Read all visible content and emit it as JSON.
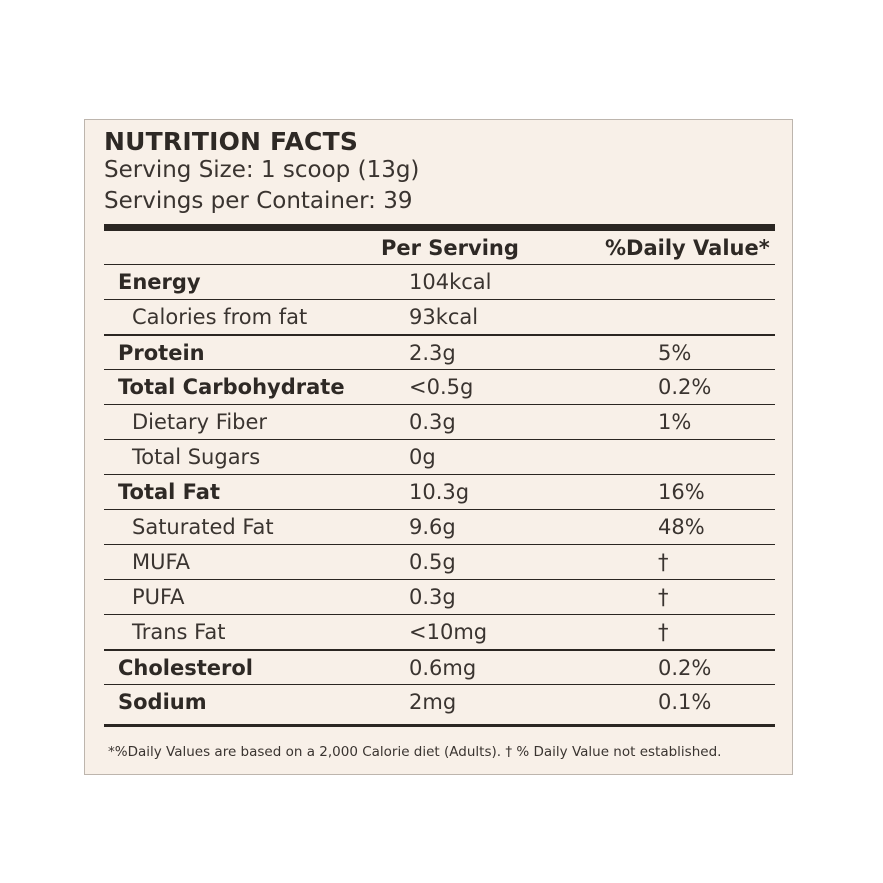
{
  "label": {
    "title": "NUTRITION FACTS",
    "serving_size": "Serving Size: 1 scoop (13g)",
    "servings_per_container": "Servings per Container: 39",
    "col_per_serving": "Per Serving",
    "col_daily_value": "%Daily Value*",
    "rows": [
      {
        "name": "Energy",
        "value": "104kcal",
        "dv": "",
        "bold": true
      },
      {
        "name": "Calories from fat",
        "value": "93kcal",
        "dv": "",
        "bold": false
      },
      {
        "name": "Protein",
        "value": "2.3g",
        "dv": "5%",
        "bold": true
      },
      {
        "name": "Total Carbohydrate",
        "value": "<0.5g",
        "dv": "0.2%",
        "bold": true
      },
      {
        "name": "Dietary Fiber",
        "value": "0.3g",
        "dv": "1%",
        "bold": false
      },
      {
        "name": "Total Sugars",
        "value": "0g",
        "dv": "",
        "bold": false
      },
      {
        "name": "Total Fat",
        "value": "10.3g",
        "dv": "16%",
        "bold": true
      },
      {
        "name": "Saturated Fat",
        "value": "9.6g",
        "dv": "48%",
        "bold": false
      },
      {
        "name": "MUFA",
        "value": "0.5g",
        "dv": "†",
        "bold": false
      },
      {
        "name": "PUFA",
        "value": "0.3g",
        "dv": "†",
        "bold": false
      },
      {
        "name": "Trans Fat",
        "value": "<10mg",
        "dv": "†",
        "bold": false
      },
      {
        "name": "Cholesterol",
        "value": "0.6mg",
        "dv": "0.2%",
        "bold": true
      },
      {
        "name": "Sodium",
        "value": "2mg",
        "dv": "0.1%",
        "bold": true
      }
    ],
    "footnote": "*%Daily Values are based on a 2,000 Calorie diet (Adults). † % Daily Value not established."
  }
}
